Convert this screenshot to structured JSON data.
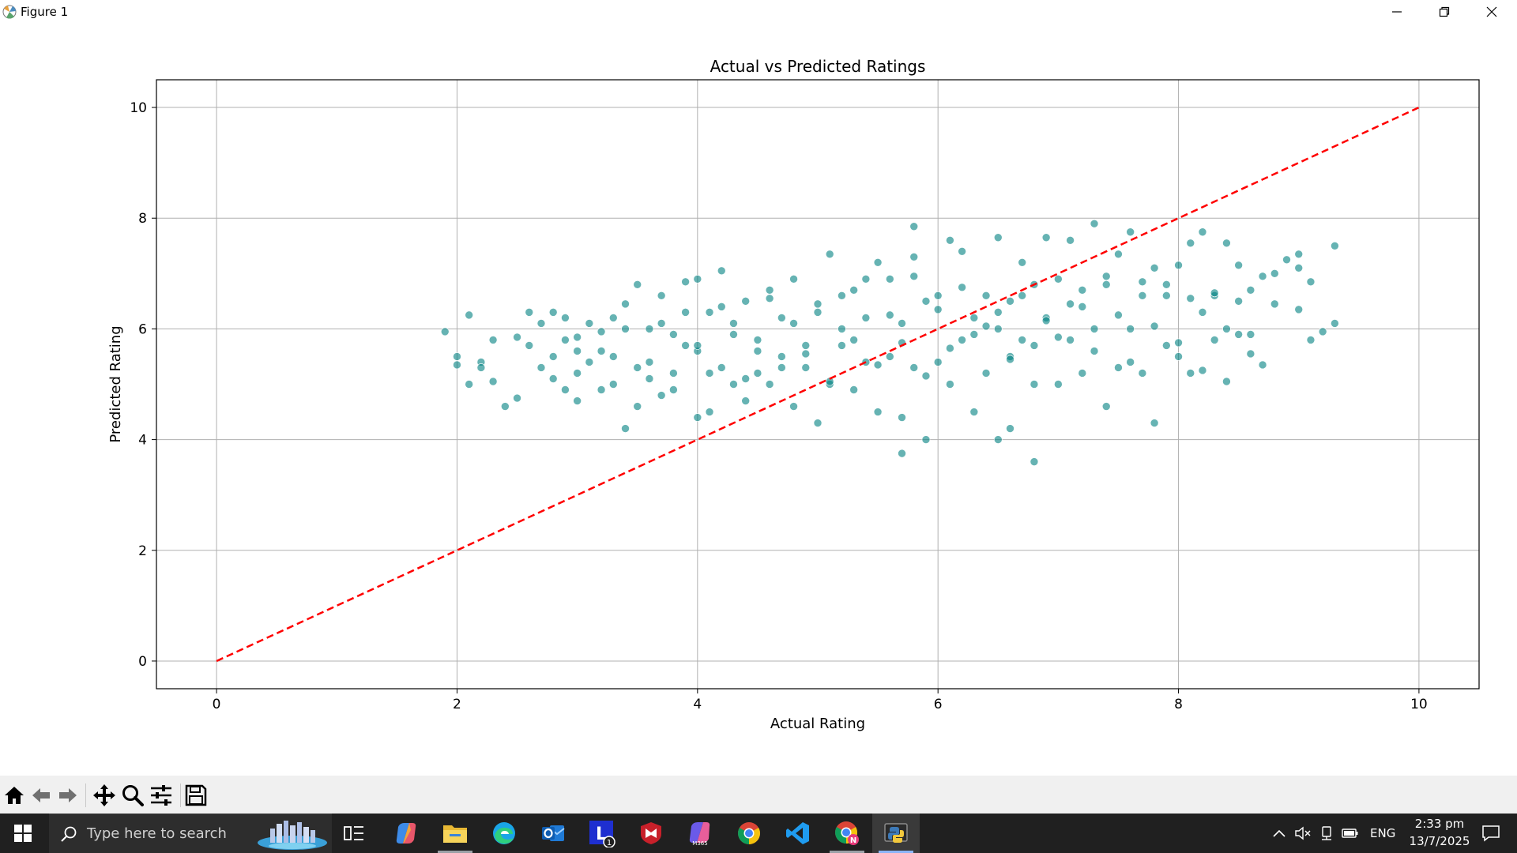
{
  "window": {
    "title": "Figure 1"
  },
  "chart_data": {
    "type": "scatter",
    "title": "Actual vs Predicted Ratings",
    "xlabel": "Actual Rating",
    "ylabel": "Predicted Rating",
    "xlim": [
      -0.5,
      10.5
    ],
    "ylim": [
      -0.5,
      10.5
    ],
    "xticks": [
      0,
      2,
      4,
      6,
      8,
      10
    ],
    "yticks": [
      0,
      2,
      4,
      6,
      8,
      10
    ],
    "grid": true,
    "point_color": "#008080",
    "point_alpha": 0.6,
    "reference_line": {
      "x": [
        0,
        10
      ],
      "y": [
        0,
        10
      ],
      "color": "#ff0000",
      "style": "dashed"
    },
    "series": [
      {
        "x": [
          1.9,
          2.0,
          2.0,
          2.1,
          2.1,
          2.2,
          2.2,
          2.3,
          2.3,
          2.4,
          2.5,
          2.5,
          2.6,
          2.6,
          2.7,
          2.7,
          2.8,
          2.8,
          2.9,
          2.9,
          3.0,
          3.0,
          3.1,
          3.1,
          3.2,
          3.2,
          3.3,
          3.3,
          3.4,
          3.4,
          3.5,
          3.5,
          3.6,
          3.6,
          3.7,
          3.7,
          3.8,
          3.8,
          3.9,
          3.9,
          4.0,
          4.0,
          4.0,
          4.1,
          4.1,
          4.2,
          4.2,
          4.3,
          4.3,
          4.4,
          4.4,
          4.5,
          4.5,
          4.6,
          4.6,
          4.7,
          4.7,
          4.8,
          4.8,
          4.9,
          4.9,
          5.0,
          5.0,
          5.1,
          5.1,
          5.2,
          5.2,
          5.3,
          5.3,
          5.4,
          5.4,
          5.5,
          5.5,
          5.6,
          5.6,
          5.7,
          5.7,
          5.7,
          5.8,
          5.8,
          5.8,
          5.9,
          5.9,
          6.0,
          6.0,
          6.1,
          6.1,
          6.2,
          6.2,
          6.3,
          6.3,
          6.4,
          6.4,
          6.5,
          6.5,
          6.5,
          6.6,
          6.6,
          6.6,
          6.7,
          6.7,
          6.8,
          6.8,
          6.8,
          6.9,
          6.9,
          7.0,
          7.0,
          7.1,
          7.1,
          7.2,
          7.2,
          7.3,
          7.3,
          7.4,
          7.4,
          7.5,
          7.5,
          7.6,
          7.6,
          7.7,
          7.7,
          7.8,
          7.8,
          7.9,
          7.9,
          8.0,
          8.0,
          8.1,
          8.1,
          8.2,
          8.2,
          8.3,
          8.3,
          8.4,
          8.4,
          8.5,
          8.5,
          8.6,
          8.6,
          8.7,
          8.8,
          8.9,
          9.0,
          9.0,
          9.1,
          9.3,
          9.3
        ],
        "y": [
          5.95,
          5.5,
          5.35,
          6.25,
          5.0,
          5.4,
          5.3,
          5.8,
          5.05,
          4.6,
          5.85,
          4.75,
          6.3,
          5.7,
          6.1,
          5.3,
          6.3,
          5.5,
          4.9,
          5.8,
          5.85,
          5.2,
          5.4,
          6.1,
          5.6,
          4.9,
          6.2,
          5.0,
          4.2,
          6.45,
          5.3,
          6.8,
          5.1,
          6.0,
          6.6,
          4.8,
          5.9,
          5.2,
          5.7,
          6.85,
          6.9,
          4.4,
          5.6,
          6.3,
          4.5,
          7.05,
          5.3,
          6.1,
          5.0,
          6.5,
          4.7,
          5.8,
          5.2,
          6.7,
          5.0,
          5.5,
          6.2,
          6.9,
          4.6,
          5.7,
          5.3,
          4.3,
          6.3,
          7.35,
          5.0,
          6.0,
          5.7,
          6.7,
          4.9,
          6.2,
          5.4,
          7.2,
          4.5,
          6.9,
          5.5,
          3.75,
          4.4,
          6.1,
          7.85,
          7.3,
          5.3,
          4.0,
          6.5,
          5.4,
          6.6,
          7.6,
          5.0,
          7.4,
          5.8,
          4.5,
          6.2,
          6.6,
          5.2,
          7.65,
          4.0,
          6.0,
          4.2,
          5.5,
          6.5,
          7.2,
          5.8,
          3.6,
          6.8,
          5.0,
          7.65,
          6.2,
          5.0,
          6.9,
          7.6,
          5.8,
          6.4,
          5.2,
          7.9,
          6.0,
          4.6,
          6.8,
          5.3,
          7.35,
          7.75,
          6.0,
          5.2,
          6.6,
          4.3,
          7.1,
          6.8,
          5.7,
          5.5,
          7.15,
          7.55,
          5.2,
          6.3,
          7.75,
          6.6,
          5.8,
          5.05,
          7.55,
          6.5,
          7.15,
          5.9,
          6.7,
          5.35,
          7.0,
          7.25,
          7.35,
          6.35,
          5.8,
          7.5,
          6.1
        ]
      },
      {
        "x": [
          2.8,
          2.9,
          3.0,
          3.0,
          3.2,
          3.3,
          3.4,
          3.5,
          3.6,
          3.7,
          3.8,
          3.9,
          4.0,
          4.1,
          4.2,
          4.3,
          4.4,
          4.5,
          4.6,
          4.7,
          4.8,
          4.9,
          5.0,
          5.1,
          5.2,
          5.3,
          5.4,
          5.5,
          5.6,
          5.7,
          5.8,
          5.9,
          6.0,
          6.1,
          6.2,
          6.3,
          6.4,
          6.5,
          6.6,
          6.7,
          6.8,
          6.9,
          7.0,
          7.1,
          7.2,
          7.3,
          7.4,
          7.5,
          7.6,
          7.7,
          7.8,
          7.9,
          8.0,
          8.1,
          8.2,
          8.3,
          8.4,
          8.5,
          8.6,
          8.7,
          8.8,
          9.0,
          9.1,
          9.2
        ],
        "y": [
          5.1,
          6.2,
          4.7,
          5.6,
          5.95,
          5.5,
          6.0,
          4.6,
          5.4,
          6.1,
          4.9,
          6.3,
          5.7,
          5.2,
          6.4,
          5.9,
          5.1,
          5.6,
          6.55,
          5.3,
          6.1,
          5.55,
          6.45,
          5.05,
          6.6,
          5.8,
          6.9,
          5.35,
          6.25,
          5.75,
          6.95,
          5.15,
          6.35,
          5.65,
          6.75,
          5.9,
          6.05,
          6.3,
          5.45,
          6.6,
          5.7,
          6.15,
          5.85,
          6.45,
          6.7,
          5.6,
          6.95,
          6.25,
          5.4,
          6.85,
          6.05,
          6.6,
          5.75,
          6.55,
          5.25,
          6.65,
          6.0,
          5.9,
          5.55,
          6.95,
          6.45,
          7.1,
          6.85,
          5.95
        ]
      }
    ]
  },
  "toolbar": {
    "icons": [
      "home-icon",
      "back-arrow-icon",
      "forward-arrow-icon",
      "pan-move-icon",
      "zoom-magnifier-icon",
      "configure-sliders-icon",
      "save-disk-icon"
    ]
  },
  "taskbar": {
    "search_placeholder": "Type here to search",
    "app_badge": "1",
    "app_tile_letter": "L",
    "language": "ENG",
    "time": "2:33 pm",
    "date": "13/7/2025"
  }
}
